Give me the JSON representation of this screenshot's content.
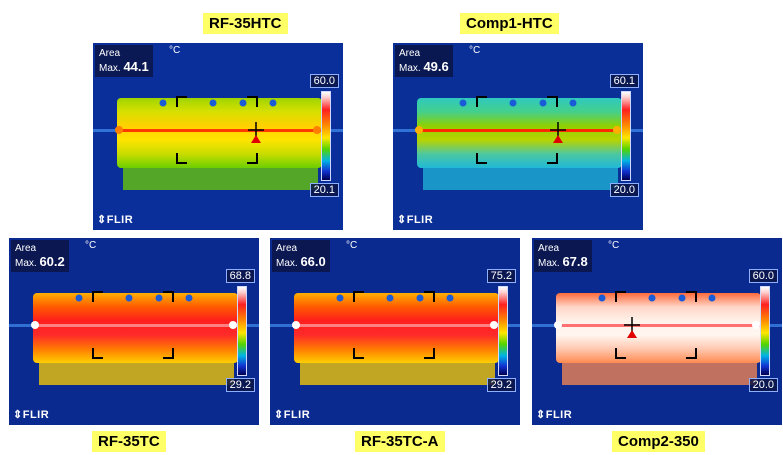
{
  "panels": [
    {
      "label": "RF-35HTC",
      "area": "Area",
      "max_prefix": "Max.",
      "max_value": "44.1",
      "unit": "°C",
      "scale_top": "60.0",
      "scale_bottom": "20.1",
      "brand": "FLIR",
      "palette": "medium"
    },
    {
      "label": "Comp1-HTC",
      "area": "Area",
      "max_prefix": "Max.",
      "max_value": "49.6",
      "unit": "°C",
      "scale_top": "60.1",
      "scale_bottom": "20.0",
      "brand": "FLIR",
      "palette": "cool"
    },
    {
      "label": "RF-35TC",
      "area": "Area",
      "max_prefix": "Max.",
      "max_value": "60.2",
      "unit": "°C",
      "scale_top": "68.8",
      "scale_bottom": "29.2",
      "brand": "FLIR",
      "palette": "hot"
    },
    {
      "label": "RF-35TC-A",
      "area": "Area",
      "max_prefix": "Max.",
      "max_value": "66.0",
      "unit": "°C",
      "scale_top": "75.2",
      "scale_bottom": "29.2",
      "brand": "FLIR",
      "palette": "hot"
    },
    {
      "label": "Comp2-350",
      "area": "Area",
      "max_prefix": "Max.",
      "max_value": "67.8",
      "unit": "°C",
      "scale_top": "60.0",
      "scale_bottom": "20.0",
      "brand": "FLIR",
      "palette": "white"
    }
  ]
}
